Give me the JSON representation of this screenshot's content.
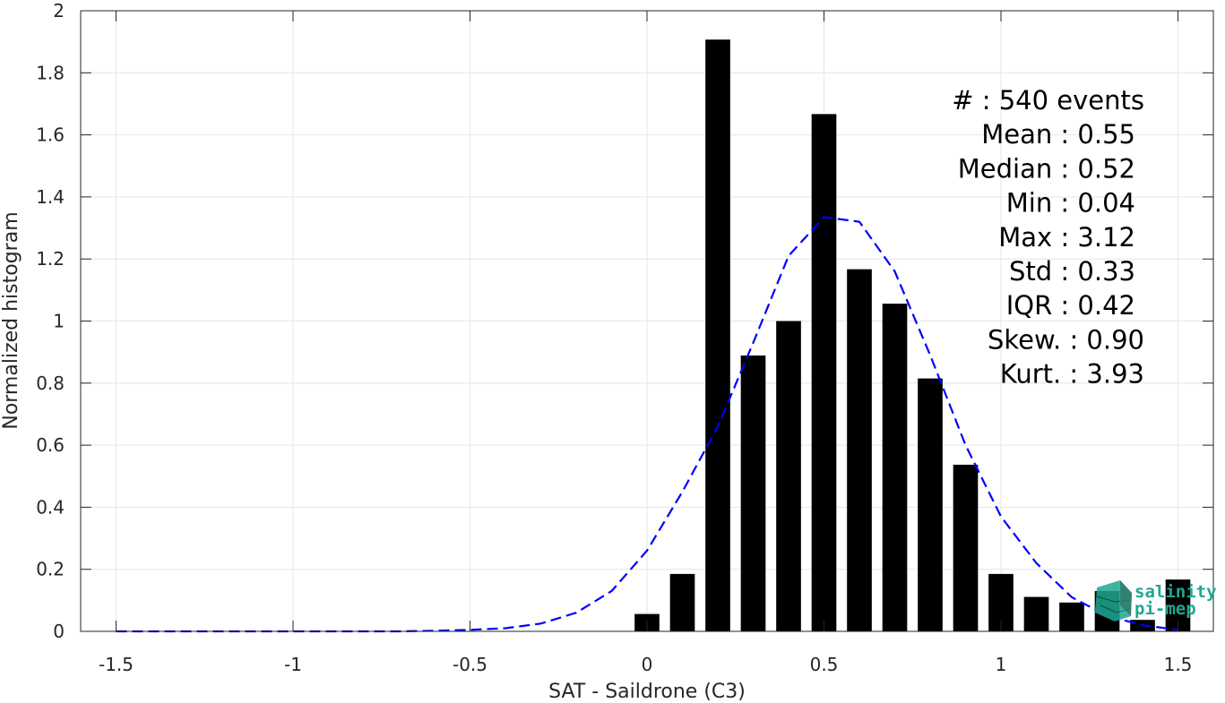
{
  "chart_data": {
    "type": "bar",
    "xlabel": "SAT - Saildrone (C3)",
    "ylabel": "Normalized histogram",
    "xlim": [
      -1.6,
      1.6
    ],
    "ylim": [
      0,
      2
    ],
    "grid": true,
    "x_ticks": [
      -1.5,
      -1,
      -0.5,
      0,
      0.5,
      1,
      1.5
    ],
    "x_tick_labels": [
      "-1.5",
      "-1",
      "-0.5",
      "0",
      "0.5",
      "1",
      "1.5"
    ],
    "y_ticks": [
      0,
      0.2,
      0.4,
      0.6,
      0.8,
      1,
      1.2,
      1.4,
      1.6,
      1.8,
      2
    ],
    "y_tick_labels": [
      "0",
      "0.2",
      "0.4",
      "0.6",
      "0.8",
      "1",
      "1.2",
      "1.4",
      "1.6",
      "1.8",
      "2"
    ],
    "bar_width": 0.07,
    "bar_color": "#000000",
    "x": [
      0.0,
      0.1,
      0.2,
      0.3,
      0.4,
      0.5,
      0.6,
      0.7,
      0.8,
      0.9,
      1.0,
      1.1,
      1.2,
      1.3,
      1.4,
      1.5
    ],
    "values": [
      0.056,
      0.185,
      1.907,
      0.889,
      1.0,
      1.667,
      1.167,
      1.056,
      0.815,
      0.537,
      0.185,
      0.111,
      0.093,
      0.13,
      0.037,
      0.167
    ],
    "fit_curve": {
      "style": "dashed",
      "color": "#0000ff",
      "x": [
        -1.5,
        -1.4,
        -1.3,
        -1.2,
        -1.1,
        -1.0,
        -0.9,
        -0.8,
        -0.7,
        -0.6,
        -0.5,
        -0.4,
        -0.3,
        -0.2,
        -0.1,
        0.0,
        0.1,
        0.2,
        0.3,
        0.4,
        0.5,
        0.6,
        0.7,
        0.8,
        0.9,
        1.0,
        1.1,
        1.2,
        1.3,
        1.4,
        1.5
      ],
      "y": [
        0,
        0,
        0,
        0,
        0,
        0,
        0,
        0,
        0,
        0.002,
        0.005,
        0.01,
        0.025,
        0.06,
        0.13,
        0.26,
        0.45,
        0.66,
        0.93,
        1.21,
        1.335,
        1.32,
        1.16,
        0.89,
        0.6,
        0.37,
        0.22,
        0.11,
        0.05,
        0.02,
        0.005
      ]
    },
    "stats": [
      "#  : 540 events",
      "Mean : 0.55",
      "Median : 0.52",
      "Min : 0.04",
      "Max : 3.12",
      "Std : 0.33",
      "IQR : 0.42",
      "Skew. : 0.90",
      "Kurt. : 3.93"
    ]
  },
  "logo": {
    "line1": "salinity",
    "line2": "pi-mep",
    "color": "#1fa88f"
  }
}
